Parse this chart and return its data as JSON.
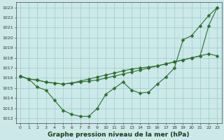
{
  "xlabel": "Graphe pression niveau de la mer (hPa)",
  "x": [
    0,
    1,
    2,
    3,
    4,
    5,
    6,
    7,
    8,
    9,
    10,
    11,
    12,
    13,
    14,
    15,
    16,
    17,
    18,
    19,
    20,
    21,
    22,
    23
  ],
  "line_dip": [
    1016.2,
    1015.9,
    1015.1,
    1014.8,
    1013.8,
    1012.8,
    1012.4,
    1012.2,
    1012.2,
    1013.0,
    1014.4,
    1015.0,
    1015.6,
    1014.8,
    1014.5,
    1014.6,
    1015.4,
    1016.1,
    1017.0,
    1019.8,
    1020.2,
    1021.2,
    1022.2,
    1023.0
  ],
  "line_mid1": [
    1016.2,
    1015.9,
    1015.8,
    1015.6,
    1015.5,
    1015.4,
    1015.5,
    1015.6,
    1015.7,
    1015.8,
    1016.0,
    1016.2,
    1016.4,
    1016.6,
    1016.8,
    1017.0,
    1017.2,
    1017.4,
    1017.6,
    1017.8,
    1018.0,
    1018.2,
    1018.4,
    1018.2
  ],
  "line_mid2": [
    1016.2,
    1015.9,
    1015.8,
    1015.6,
    1015.5,
    1015.4,
    1015.5,
    1015.7,
    1015.9,
    1016.1,
    1016.3,
    1016.5,
    1016.7,
    1016.9,
    1017.0,
    1017.1,
    1017.2,
    1017.4,
    1017.6,
    1017.8,
    1018.0,
    1018.2,
    1021.2,
    1023.0
  ],
  "ylim": [
    1011.5,
    1023.5
  ],
  "yticks": [
    1012,
    1013,
    1014,
    1015,
    1016,
    1017,
    1018,
    1019,
    1020,
    1021,
    1022,
    1023
  ],
  "bg_color": "#cce8e8",
  "grid_color": "#99cccc",
  "line_color": "#2d6e2d",
  "marker_size": 2.5,
  "lw": 0.8,
  "xlabel_fontsize": 6.5,
  "tick_fontsize": 4.5
}
